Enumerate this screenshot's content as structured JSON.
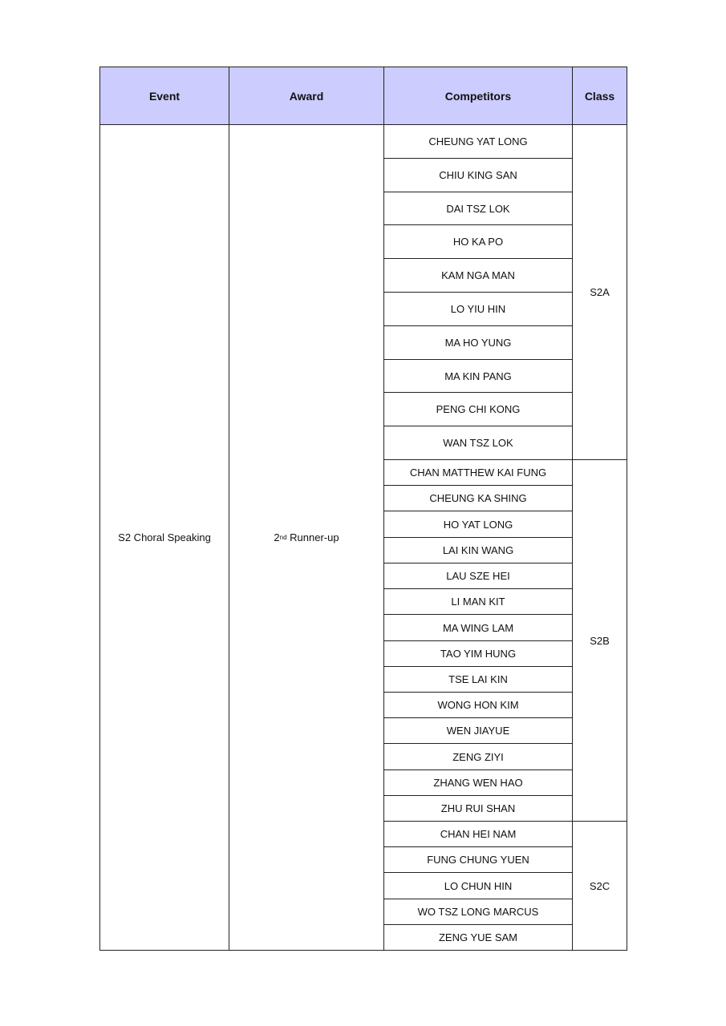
{
  "table": {
    "headers": [
      "Event",
      "Award",
      "Competitors",
      "Class"
    ],
    "event": "S2 Choral Speaking",
    "award": {
      "ordinal": "2",
      "suffix": "nd",
      "label": " Runner-up"
    },
    "groups": [
      {
        "class": "S2A",
        "competitors": [
          "CHEUNG YAT LONG",
          "CHIU KING SAN",
          "DAI TSZ LOK",
          "HO KA PO",
          "KAM NGA MAN",
          "LO YIU HIN",
          "MA HO YUNG",
          "MA KIN PANG",
          "PENG CHI KONG",
          "WAN TSZ LOK"
        ]
      },
      {
        "class": "S2B",
        "competitors": [
          "CHAN MATTHEW KAI FUNG",
          "CHEUNG KA SHING",
          "HO YAT LONG",
          "LAI KIN WANG",
          "LAU SZE HEI",
          "LI MAN KIT",
          "MA WING LAM",
          "TAO YIM HUNG",
          "TSE LAI KIN",
          "WONG HON KIM",
          "WEN JIAYUE",
          "ZENG ZIYI",
          "ZHANG WEN HAO",
          "ZHU RUI SHAN"
        ]
      },
      {
        "class": "S2C",
        "competitors": [
          "CHAN HEI NAM",
          "FUNG CHUNG YUEN",
          "LO CHUN HIN",
          "WO TSZ LONG MARCUS",
          "ZENG YUE SAM"
        ]
      }
    ]
  }
}
